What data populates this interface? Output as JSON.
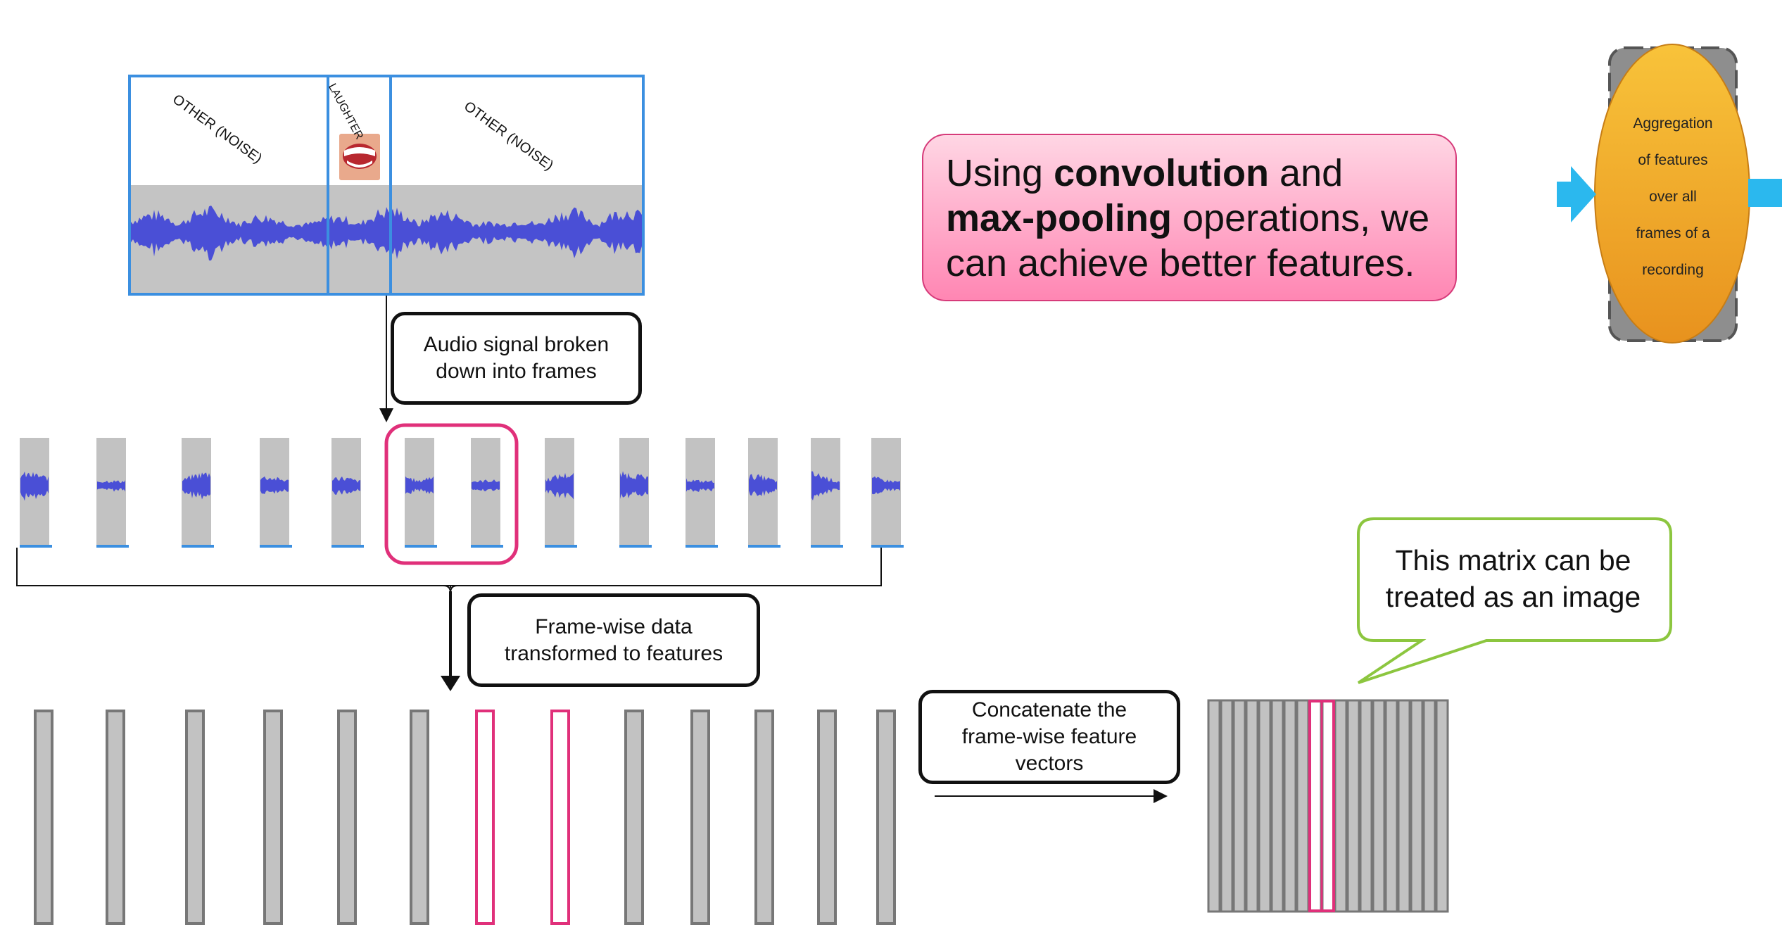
{
  "waveform": {
    "segments": [
      {
        "label": "OTHER (NOISE)"
      },
      {
        "label": "LAUGHTER"
      },
      {
        "label": "OTHER (NOISE)"
      }
    ]
  },
  "callout": {
    "text_before": "Using ",
    "bold1": "convolution",
    "text_mid1": " and ",
    "bold2": "max-pooling",
    "text_after": " operations, we can achieve better features."
  },
  "aggregation": {
    "text": "Aggregation of features over all frames of a recording",
    "lines": [
      "Aggregation",
      "of features",
      "over all",
      "frames of a",
      "recording"
    ]
  },
  "labels": {
    "frames_box": "Audio signal broken\ndown into frames",
    "features_box": "Frame-wise data\ntransformed to features",
    "concat_box": "Concatenate the\nframe-wise feature\nvectors",
    "matrix_bubble": "This matrix  can be\ntreated as an image"
  },
  "frames": {
    "count": 13,
    "highlighted": [
      6,
      7
    ]
  },
  "feature_vectors": {
    "count": 13,
    "highlighted": [
      6,
      7
    ]
  },
  "matrix": {
    "columns": 19,
    "highlighted": [
      8,
      9
    ]
  },
  "colors": {
    "waveform_border": "#3b8fe0",
    "waveform_fill": "#4a4fd6",
    "frame_bg": "#c2c2c2",
    "highlight": "#e0307a",
    "callout_border": "#d63b7a",
    "bubble_border": "#8cc63f",
    "arrow_blue": "#2bb8ee",
    "aggregation_fill": "#f4a52a"
  }
}
